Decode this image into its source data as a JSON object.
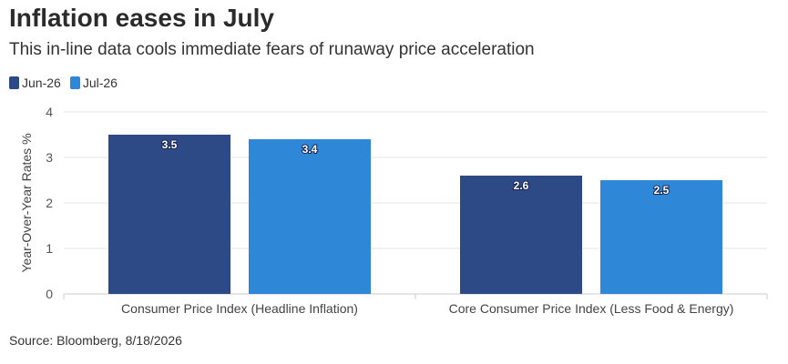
{
  "chart_data": {
    "type": "bar",
    "title": "Inflation eases in July",
    "subtitle": "This in-line data cools immediate fears of runaway price acceleration",
    "categories": [
      "Consumer Price Index (Headline Inflation)",
      "Core Consumer Price Index (Less Food & Energy)"
    ],
    "series": [
      {
        "name": "Jun-26",
        "color": "#2d4a87",
        "values": [
          3.5,
          2.6
        ]
      },
      {
        "name": "Jul-26",
        "color": "#2f87d8",
        "values": [
          3.4,
          2.5
        ]
      }
    ],
    "xlabel": "",
    "ylabel": "Year-Over-Year Rates %",
    "ylim": [
      0,
      4
    ],
    "yticks": [
      0,
      1,
      2,
      3,
      4
    ],
    "grid": true,
    "legend_position": "top-left",
    "source": "Source: Bloomberg, 8/18/2026"
  }
}
